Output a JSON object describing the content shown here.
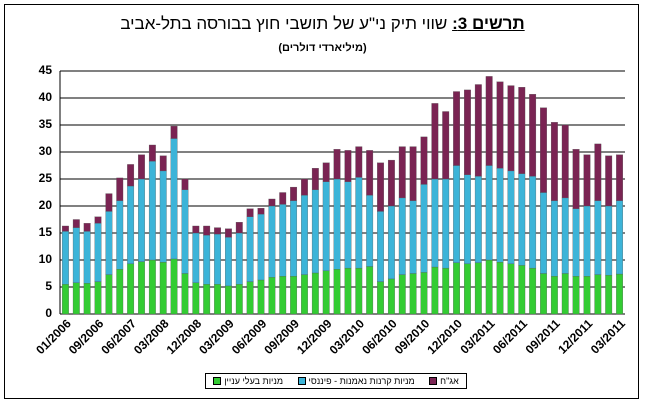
{
  "chart_data": {
    "type": "stacked_bar",
    "title_prefix": "תרשים 3:",
    "title": "שווי תיק ני\"ע של תושבי חוץ בבורסה בתל-אביב",
    "subtitle": "(מיליארדי דולרים)",
    "categories": [
      "01/2006",
      null,
      null,
      "09/2006",
      null,
      null,
      "06/2007",
      null,
      null,
      "03/2008",
      null,
      null,
      "12/2008",
      null,
      null,
      "03/2009",
      null,
      null,
      "06/2009",
      null,
      null,
      "09/2009",
      null,
      null,
      "12/2009",
      null,
      null,
      "03/2010",
      null,
      null,
      "06/2010",
      null,
      null,
      "09/2010",
      null,
      null,
      "12/2010",
      null,
      null,
      "03/2011",
      null,
      null,
      "06/2011",
      null,
      null,
      "09/2011",
      null,
      null,
      "12/2011",
      null,
      null,
      "03/2011"
    ],
    "series": [
      {
        "name": "מניות בעלי עניין",
        "color": "#33cc33",
        "values": [
          5.5,
          5.8,
          5.7,
          6,
          7.3,
          8.3,
          9.3,
          9.7,
          10,
          9.6,
          10.2,
          7.5,
          5.8,
          5.5,
          5.5,
          5.2,
          5.5,
          6,
          6.3,
          6.8,
          7,
          7,
          7.3,
          7.6,
          8,
          8.3,
          8.5,
          8.5,
          8.8,
          6,
          6.5,
          7.3,
          7.5,
          7.7,
          8.7,
          8.5,
          9.5,
          9.3,
          9.5,
          10,
          9.6,
          9.3,
          9,
          8.5,
          7.5,
          7,
          7.5,
          7,
          7,
          7.3,
          7.2,
          7.4
        ]
      },
      {
        "name": "מניות קרנות נאמנות - פיננסי",
        "color": "#3cb4d8",
        "values": [
          9.8,
          10.2,
          9.6,
          10.8,
          11.7,
          12.7,
          14.4,
          15.3,
          18.3,
          16.9,
          22.3,
          15.5,
          9.2,
          9.1,
          9.3,
          9,
          9.5,
          12,
          12.2,
          13.2,
          13.3,
          14,
          14.7,
          15.4,
          16.5,
          16.7,
          16,
          16.8,
          13.2,
          13,
          13.5,
          14.2,
          13.5,
          16.3,
          16.3,
          16.5,
          18,
          16.5,
          16,
          17.5,
          17.4,
          17.2,
          17,
          17,
          15,
          14,
          14,
          12.5,
          13,
          13.7,
          12.8,
          13.6
        ]
      },
      {
        "name": "אג\"ח",
        "color": "#7a2453",
        "values": [
          1,
          1.5,
          1.5,
          1.2,
          3.3,
          4.2,
          4,
          4.5,
          3,
          2.8,
          2.3,
          2,
          1.3,
          1.7,
          1.2,
          1.6,
          2,
          1.5,
          1.1,
          1.3,
          2.2,
          2.5,
          3,
          4,
          3.5,
          5.5,
          5.8,
          5.7,
          8.3,
          9,
          8.5,
          9.5,
          10,
          8.8,
          14,
          12.5,
          13.7,
          15.7,
          17,
          16.5,
          16,
          15.8,
          16,
          15.2,
          15.7,
          14.5,
          13.5,
          11,
          9.5,
          10.5,
          9.3,
          8.5
        ]
      }
    ],
    "ylim": [
      0,
      45
    ],
    "yticks": [
      0,
      5,
      10,
      15,
      20,
      25,
      30,
      35,
      40,
      45
    ],
    "grid": true,
    "legend": "bottom"
  }
}
